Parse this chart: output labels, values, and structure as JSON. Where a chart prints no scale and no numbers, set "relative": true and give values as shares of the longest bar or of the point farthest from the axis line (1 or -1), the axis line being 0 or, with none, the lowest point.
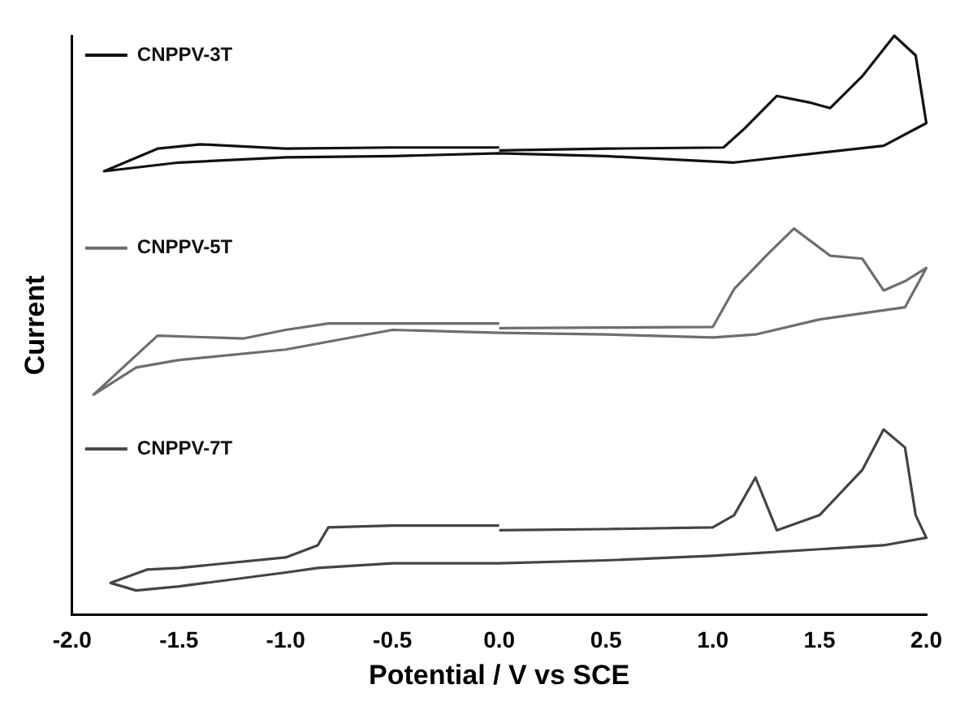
{
  "chart_data": {
    "type": "line",
    "relative": true,
    "xlabel": "Potential / V vs SCE",
    "ylabel": "Current",
    "xlim": [
      -2.0,
      2.0
    ],
    "xticks": [
      {
        "value": -2,
        "label": "-2.0"
      },
      {
        "value": -1.5,
        "label": "-1.5"
      },
      {
        "value": -1,
        "label": "-1.0"
      },
      {
        "value": -0.5,
        "label": "-0.5"
      },
      {
        "value": 0,
        "label": "0.0"
      },
      {
        "value": 0.5,
        "label": "0.5"
      },
      {
        "value": 1,
        "label": "1.0"
      },
      {
        "value": 1.5,
        "label": "1.5"
      },
      {
        "value": 2,
        "label": "2.0"
      }
    ],
    "grid": false,
    "legend": "top left",
    "marker": "none",
    "line_style": "solid",
    "series": [
      {
        "name": "CNPPV-3T",
        "color": "#111111",
        "x": [
          0,
          0.5,
          1.05,
          1.15,
          1.3,
          1.45,
          1.55,
          1.7,
          1.85,
          1.95,
          2.0,
          1.8,
          1.1,
          0.5,
          0,
          -0.5,
          -1.0,
          -1.5,
          -1.85,
          -1.6,
          -1.4,
          -1.0,
          -0.5,
          0
        ],
        "values": [
          0.802,
          0.805,
          0.807,
          0.84,
          0.896,
          0.885,
          0.875,
          0.93,
          1.0,
          0.966,
          0.849,
          0.81,
          0.781,
          0.792,
          0.797,
          0.792,
          0.79,
          0.781,
          0.766,
          0.805,
          0.8125,
          0.805,
          0.807,
          0.807
        ]
      },
      {
        "name": "CNPPV-5T",
        "color": "#6e6e6e",
        "x": [
          0,
          0.5,
          1.0,
          1.1,
          1.25,
          1.38,
          1.55,
          1.7,
          1.8,
          1.9,
          2.0,
          1.9,
          1.5,
          1.2,
          1.0,
          0.5,
          0,
          -0.5,
          -1.0,
          -1.5,
          -1.7,
          -1.9,
          -1.6,
          -1.2,
          -1.0,
          -0.8,
          -0.5,
          0
        ],
        "values": [
          0.495,
          0.496,
          0.497,
          0.5625,
          0.62,
          0.667,
          0.62,
          0.615,
          0.56,
          0.576,
          0.599,
          0.531,
          0.51,
          0.484,
          0.479,
          0.484,
          0.487,
          0.492,
          0.458,
          0.44,
          0.427,
          0.38,
          0.482,
          0.477,
          0.492,
          0.503,
          0.503,
          0.503
        ]
      },
      {
        "name": "CNPPV-7T",
        "color": "#444444",
        "x": [
          0,
          0.5,
          1.0,
          1.1,
          1.2,
          1.3,
          1.5,
          1.7,
          1.8,
          1.9,
          1.95,
          2.0,
          1.8,
          1.0,
          0.5,
          0,
          -0.5,
          -0.85,
          -1.0,
          -1.5,
          -1.7,
          -1.82,
          -1.65,
          -1.5,
          -1.0,
          -0.85,
          -0.8,
          -0.5,
          0
        ],
        "values": [
          0.146,
          0.148,
          0.151,
          0.172,
          0.237,
          0.146,
          0.172,
          0.25,
          0.32,
          0.289,
          0.172,
          0.133,
          0.12,
          0.102,
          0.094,
          0.089,
          0.089,
          0.081,
          0.073,
          0.049,
          0.042,
          0.055,
          0.078,
          0.081,
          0.099,
          0.12,
          0.151,
          0.154,
          0.154
        ]
      }
    ]
  }
}
